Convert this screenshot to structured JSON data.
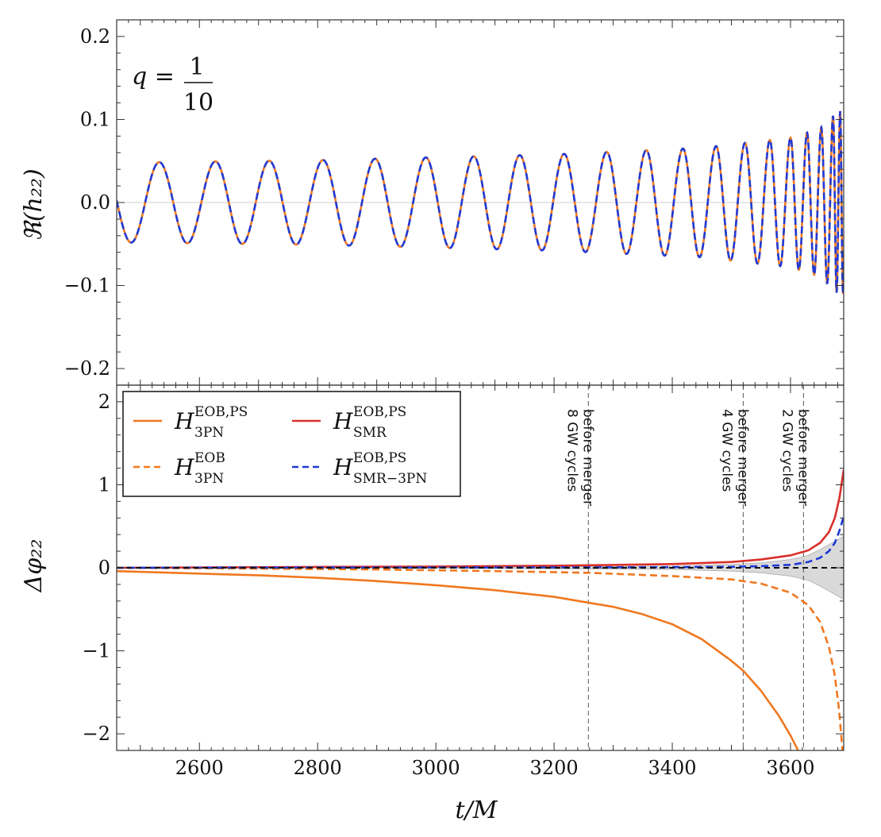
{
  "chart_data": [
    {
      "type": "line",
      "panel": "top",
      "ylabel": "ℜ(h₂₂)",
      "annotation": {
        "lhs": "q =",
        "num": "1",
        "den": "10"
      },
      "xlim": [
        2460,
        3690
      ],
      "ylim": [
        -0.22,
        0.22
      ],
      "yticks": [
        "0.2",
        "0.1",
        "0.0",
        "−0.1",
        "−0.2"
      ],
      "ytick_values": [
        0.2,
        0.1,
        0.0,
        -0.1,
        -0.2
      ],
      "series": [
        {
          "style": "solid",
          "color": "#f07820",
          "envelope": [
            [
              2460,
              0.048
            ],
            [
              2800,
              0.051
            ],
            [
              3200,
              0.058
            ],
            [
              3450,
              0.066
            ],
            [
              3600,
              0.078
            ],
            [
              3650,
              0.089
            ],
            [
              3680,
              0.11
            ]
          ],
          "peaks_x": [
            2532,
            2627,
            2718,
            2809,
            2897,
            2983,
            3064,
            3142,
            3217,
            3289,
            3356,
            3418,
            3474,
            3523,
            3565,
            3600,
            3628,
            3652,
            3672,
            3684
          ]
        },
        {
          "style": "dashed",
          "color": "#1f3ad6",
          "envelope": [
            [
              2460,
              0.048
            ],
            [
              2800,
              0.051
            ],
            [
              3200,
              0.058
            ],
            [
              3450,
              0.066
            ],
            [
              3600,
              0.078
            ],
            [
              3650,
              0.089
            ],
            [
              3680,
              0.11
            ]
          ],
          "peaks_x": [
            2532,
            2627,
            2718,
            2809,
            2897,
            2983,
            3064,
            3142,
            3217,
            3289,
            3356,
            3418,
            3474,
            3523,
            3565,
            3600,
            3628,
            3652,
            3672,
            3684
          ]
        }
      ]
    },
    {
      "type": "line",
      "panel": "bottom",
      "xlabel": "t/M",
      "ylabel": "Δφ₂₂",
      "xlim": [
        2460,
        3690
      ],
      "ylim": [
        -2.2,
        2.2
      ],
      "xticks": [
        "2600",
        "2800",
        "3000",
        "3200",
        "3400",
        "3600"
      ],
      "xtick_values": [
        2600,
        2800,
        3000,
        3200,
        3400,
        3600
      ],
      "yticks": [
        "2",
        "1",
        "0",
        "−1",
        "−2"
      ],
      "ytick_values": [
        2,
        1,
        0,
        -1,
        -2
      ],
      "legend": {
        "position": "top-left",
        "entries": [
          {
            "main": "H",
            "sup": "EOB,PS",
            "sub": "3PN",
            "color": "#f07820",
            "style": "solid"
          },
          {
            "main": "H",
            "sup": "EOB,PS",
            "sub": "SMR",
            "color": "#d9302a",
            "style": "solid"
          },
          {
            "main": "H",
            "sup": "EOB",
            "sub": "3PN",
            "color": "#f07820",
            "style": "dashed"
          },
          {
            "main": "H",
            "sup": "EOB,PS",
            "sub": "SMR−3PN",
            "color": "#1f3ad6",
            "style": "dashed"
          }
        ]
      },
      "vlines": [
        {
          "x": 3258,
          "line1": "8 GW cycles",
          "line2": "before merger"
        },
        {
          "x": 3520,
          "line1": "4 GW cycles",
          "line2": "before merger"
        },
        {
          "x": 3622,
          "line1": "2 GW cycles",
          "line2": "before merger"
        }
      ],
      "series": [
        {
          "legend_index": 0,
          "color": "#f07820",
          "style": "solid",
          "x": [
            2460,
            2600,
            2700,
            2800,
            2900,
            3000,
            3100,
            3200,
            3258,
            3300,
            3350,
            3400,
            3450,
            3500,
            3520,
            3550,
            3580,
            3600,
            3620
          ],
          "y": [
            -0.04,
            -0.07,
            -0.09,
            -0.12,
            -0.16,
            -0.21,
            -0.27,
            -0.35,
            -0.42,
            -0.47,
            -0.56,
            -0.68,
            -0.86,
            -1.12,
            -1.24,
            -1.48,
            -1.78,
            -2.02,
            -2.3
          ]
        },
        {
          "legend_index": 2,
          "color": "#f07820",
          "style": "dashed",
          "x": [
            2460,
            2700,
            2900,
            3100,
            3258,
            3400,
            3500,
            3550,
            3600,
            3630,
            3650,
            3665,
            3675,
            3682,
            3688
          ],
          "y": [
            0,
            -0.01,
            -0.02,
            -0.04,
            -0.06,
            -0.1,
            -0.14,
            -0.19,
            -0.3,
            -0.45,
            -0.65,
            -0.95,
            -1.3,
            -1.7,
            -2.2
          ]
        },
        {
          "legend_index": 1,
          "color": "#d9302a",
          "style": "solid",
          "x": [
            2460,
            2800,
            3000,
            3200,
            3258,
            3400,
            3500,
            3550,
            3600,
            3630,
            3650,
            3665,
            3675,
            3683,
            3690
          ],
          "y": [
            0,
            0.01,
            0.015,
            0.025,
            0.03,
            0.045,
            0.07,
            0.1,
            0.15,
            0.21,
            0.3,
            0.43,
            0.6,
            0.85,
            1.18
          ]
        },
        {
          "legend_index": 3,
          "color": "#1f3ad6",
          "style": "dashed",
          "x": [
            2460,
            2800,
            3200,
            3400,
            3500,
            3550,
            3600,
            3630,
            3650,
            3665,
            3675,
            3683,
            3690
          ],
          "y": [
            0,
            0.003,
            0.005,
            0.008,
            0.012,
            0.02,
            0.035,
            0.07,
            0.12,
            0.2,
            0.3,
            0.45,
            0.62
          ]
        },
        {
          "legend_index": null,
          "color": "#111111",
          "style": "dashed",
          "x": [
            2460,
            3690
          ],
          "y": [
            0,
            0
          ]
        }
      ],
      "band": {
        "color": "#cccccc",
        "x": [
          2460,
          3000,
          3400,
          3500,
          3550,
          3600,
          3630,
          3650,
          3670,
          3690
        ],
        "upper": [
          0,
          0.005,
          0.02,
          0.04,
          0.06,
          0.1,
          0.15,
          0.22,
          0.3,
          0.38
        ],
        "lower": [
          0,
          -0.005,
          -0.02,
          -0.04,
          -0.06,
          -0.1,
          -0.15,
          -0.22,
          -0.3,
          -0.38
        ]
      }
    }
  ]
}
